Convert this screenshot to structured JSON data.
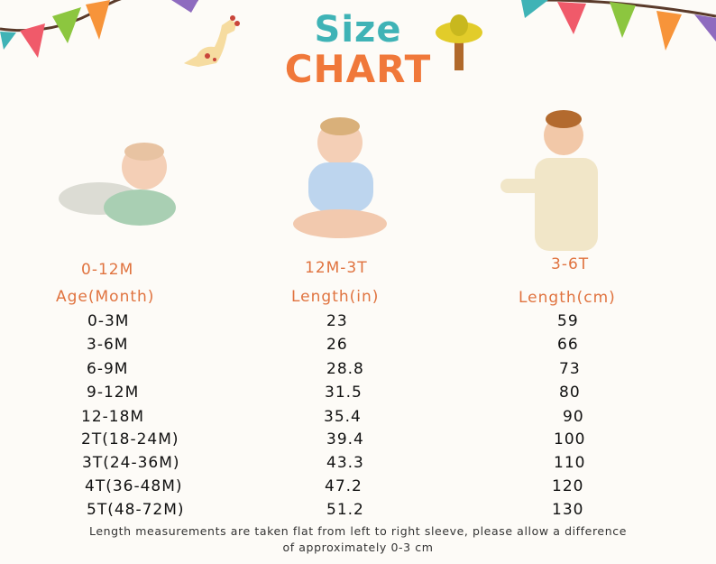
{
  "title": {
    "line1": "Size",
    "line2": "CHART"
  },
  "colors": {
    "title_teal": "#3fb3b6",
    "title_orange": "#f0783a",
    "header_orange": "#e0733f",
    "bunting": [
      "#3fb3b6",
      "#f05a6a",
      "#8cc63f",
      "#f7943a",
      "#8e6bbf"
    ]
  },
  "columns": [
    {
      "group": "0-12M",
      "header": "Age(Month)"
    },
    {
      "group": "12M-3T",
      "header": "Length(in)"
    },
    {
      "group": "3-6T",
      "header": "Length(cm)"
    }
  ],
  "rows": [
    [
      "0-3M",
      "23",
      "59"
    ],
    [
      "3-6M",
      "26",
      "66"
    ],
    [
      "6-9M",
      "28.8",
      "73"
    ],
    [
      "9-12M",
      "31.5",
      "80"
    ],
    [
      "12-18M",
      "35.4",
      "90"
    ],
    [
      "2T(18-24M)",
      "39.4",
      "100"
    ],
    [
      "3T(24-36M)",
      "43.3",
      "110"
    ],
    [
      "4T(36-48M)",
      "47.2",
      "120"
    ],
    [
      "5T(48-72M)",
      "51.2",
      "130"
    ]
  ],
  "note": {
    "line1": "Length measurements are taken flat from left to right sleeve,  please allow a difference",
    "line2": "of approximately 0-3 cm"
  }
}
